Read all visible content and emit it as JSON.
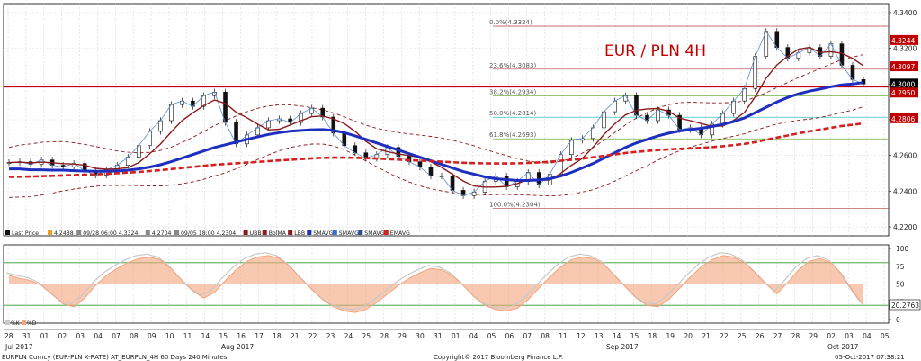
{
  "title": "EUR / PLN 4H",
  "footer": {
    "left": "EURPLN Curncy (EUR-PLN X-RATE) AT_EURPLN_4H 60 Days 240 Minutes",
    "center": "Copyright© 2017 Bloomberg Finance L.P.",
    "right": "05-Oct-2017 07:38:21"
  },
  "colors": {
    "price_candle": "#111111",
    "bolma": "#8b1a1a",
    "bollinger": "#8b1a1a",
    "smavg_fast": "#5b8fd6",
    "smavg_slow": "#1e2fbf",
    "emavg": "#d42020",
    "fib_line": "#b04040",
    "resistance": "#c00000",
    "osc_fill": "#f4a37c",
    "osc_shadow": "#c8c8c8",
    "osc_bands": "#2e9e2e"
  },
  "legend": [
    {
      "label": "Last Price",
      "color": "#111111"
    },
    {
      "label": "4.2488",
      "color": "#f0a020"
    },
    {
      "label": "09/28 06:00 4.3324",
      "color": "#888888"
    },
    {
      "label": "4.2704",
      "color": "#888888"
    },
    {
      "label": "09/05 18:00 4.2304",
      "color": "#888888"
    },
    {
      "label": "UBB",
      "color": "#8b1a1a"
    },
    {
      "label": "BolMA",
      "color": "#8b1a1a"
    },
    {
      "label": "LBB",
      "color": "#8b1a1a"
    },
    {
      "label": "SMAVG",
      "color": "#1e2fbf"
    },
    {
      "label": "SMAVG",
      "color": "#3a6fd0"
    },
    {
      "label": "SMAVG",
      "color": "#2a4fa0"
    },
    {
      "label": "EMAVG",
      "color": "#d42020"
    }
  ],
  "osc_legend": [
    {
      "label": "%K",
      "color": "#c8c8c8"
    },
    {
      "label": "%D",
      "color": "#f4a37c"
    }
  ],
  "fib_labels": [
    {
      "label": "0.0%(4.3324)",
      "value": 4.3324
    },
    {
      "label": "23.6%(4.3083)",
      "value": 4.3083
    },
    {
      "label": "38.2%(4.2934)",
      "value": 4.2934
    },
    {
      "label": "50.0%(4.2814)",
      "value": 4.2814
    },
    {
      "label": "61.8%(4.2693)",
      "value": 4.2693
    },
    {
      "label": "100.0%(4.2304)",
      "value": 4.2304
    }
  ],
  "right_tags": [
    {
      "text": "4.3244",
      "value": 4.3244,
      "bg": "#c00000",
      "fg": "#ffffff"
    },
    {
      "text": "4.3097",
      "value": 4.3097,
      "bg": "#c00000",
      "fg": "#ffffff"
    },
    {
      "text": "4.3000",
      "value": 4.3,
      "bg": "#000000",
      "fg": "#ffffff"
    },
    {
      "text": "4.2950",
      "value": 4.295,
      "bg": "#c00000",
      "fg": "#ffffff"
    },
    {
      "text": "4.2806",
      "value": 4.2806,
      "bg": "#c00000",
      "fg": "#ffffff"
    }
  ],
  "osc_tag": {
    "text": "20.2763",
    "value": 20.2763
  },
  "chart_data": {
    "type": "line",
    "title": "EUR / PLN 4H",
    "xlabel": "",
    "ylabel": "",
    "ylim": [
      4.215,
      4.345
    ],
    "y_ticks": [
      4.22,
      4.24,
      4.26,
      4.28,
      4.3,
      4.32,
      4.34
    ],
    "y_tick_labels": [
      "4.2200",
      "4.2400",
      "4.2600",
      "4.2800",
      "4.3000",
      "4.3200",
      "4.3400"
    ],
    "x_ticks": [
      "28",
      "31",
      "01",
      "02",
      "03",
      "04",
      "07",
      "08",
      "09",
      "10",
      "11",
      "14",
      "15",
      "16",
      "17",
      "18",
      "21",
      "22",
      "23",
      "24",
      "25",
      "28",
      "29",
      "30",
      "31",
      "01",
      "04",
      "05",
      "06",
      "07",
      "08",
      "11",
      "12",
      "13",
      "14",
      "15",
      "18",
      "19",
      "20",
      "21",
      "22",
      "25",
      "26",
      "27",
      "28",
      "29",
      "02",
      "03",
      "04",
      "05"
    ],
    "month_labels": [
      "Jul 2017",
      "Aug 2017",
      "Sep 2017",
      "Oct 2017"
    ],
    "horizontal_lines": [
      {
        "name": "resistance",
        "value": 4.2985
      }
    ],
    "series": [
      {
        "name": "Last Price",
        "values": [
          4.256,
          4.2565,
          4.255,
          4.2575,
          4.2545,
          4.2535,
          4.2555,
          4.2515,
          4.249,
          4.252,
          4.2545,
          4.259,
          4.2655,
          4.2735,
          4.2795,
          4.2885,
          4.2905,
          4.2875,
          4.2935,
          4.2955,
          4.2785,
          4.2665,
          4.2715,
          4.2755,
          4.2795,
          4.2805,
          4.2785,
          4.2835,
          4.2865,
          4.2815,
          4.2725,
          4.2655,
          4.2615,
          4.2585,
          4.2605,
          4.2645,
          4.2595,
          4.2565,
          4.2535,
          4.2485,
          4.2485,
          4.2405,
          4.2375,
          4.2395,
          4.2455,
          4.2485,
          4.2425,
          4.2455,
          4.2505,
          4.2435,
          4.2495,
          4.2605,
          4.2685,
          4.2695,
          4.2755,
          4.2845,
          4.2905,
          4.2935,
          4.2825,
          4.2795,
          4.2855,
          4.2825,
          4.2745,
          4.2755,
          4.2715,
          4.2775,
          4.2835,
          4.2905,
          4.2975,
          4.3155,
          4.3295,
          4.3205,
          4.3145,
          4.3175,
          4.3205,
          4.3155,
          4.3225,
          4.3105,
          4.3025,
          4.3
        ]
      },
      {
        "name": "SMAVG",
        "values": [
          4.2525,
          4.2525,
          4.252,
          4.252,
          4.2518,
          4.2518,
          4.2515,
          4.2513,
          4.2512,
          4.2512,
          4.2513,
          4.2518,
          4.2525,
          4.2535,
          4.2548,
          4.2565,
          4.2585,
          4.2605,
          4.2625,
          4.2645,
          4.266,
          4.2675,
          4.269,
          4.2705,
          4.2718,
          4.2728,
          4.2736,
          4.274,
          4.2744,
          4.2745,
          4.274,
          4.2728,
          4.271,
          4.269,
          4.267,
          4.265,
          4.263,
          4.261,
          4.259,
          4.257,
          4.255,
          4.253,
          4.251,
          4.2495,
          4.248,
          4.247,
          4.2465,
          4.246,
          4.246,
          4.2463,
          4.247,
          4.2485,
          4.2505,
          4.253,
          4.2555,
          4.2585,
          4.2615,
          4.2645,
          4.267,
          4.269,
          4.271,
          4.2725,
          4.2737,
          4.2745,
          4.2752,
          4.2762,
          4.2775,
          4.279,
          4.281,
          4.284,
          4.287,
          4.29,
          4.2925,
          4.2945,
          4.296,
          4.2972,
          4.2985,
          4.2995,
          4.3,
          4.3008
        ]
      },
      {
        "name": "EMAVG",
        "values": [
          4.248,
          4.2481,
          4.2482,
          4.2484,
          4.2486,
          4.2488,
          4.249,
          4.2492,
          4.2494,
          4.2497,
          4.25,
          4.2504,
          4.2508,
          4.2513,
          4.2518,
          4.2524,
          4.253,
          4.2536,
          4.2542,
          4.2548,
          4.2552,
          4.2556,
          4.256,
          4.2564,
          4.2568,
          4.2572,
          4.2576,
          4.258,
          4.2584,
          4.2587,
          4.2588,
          4.2588,
          4.2587,
          4.2585,
          4.2583,
          4.258,
          4.2577,
          4.2574,
          4.2571,
          4.2568,
          4.2565,
          4.2562,
          4.2559,
          4.2557,
          4.2556,
          4.2555,
          4.2555,
          4.2556,
          4.2558,
          4.2561,
          4.2565,
          4.257,
          4.2576,
          4.2583,
          4.259,
          4.2598,
          4.2606,
          4.2614,
          4.262,
          4.2625,
          4.263,
          4.2634,
          4.2637,
          4.264,
          4.2643,
          4.2647,
          4.2652,
          4.2658,
          4.2665,
          4.2675,
          4.2688,
          4.27,
          4.2712,
          4.2724,
          4.2735,
          4.2745,
          4.2755,
          4.2765,
          4.2772,
          4.278
        ]
      }
    ],
    "oscillator": {
      "ylim": [
        0,
        100
      ],
      "y_ticks": [
        0,
        25,
        50,
        75,
        100
      ],
      "bands": [
        20,
        50,
        80
      ],
      "values": [
        62,
        58,
        55,
        48,
        35,
        22,
        18,
        30,
        48,
        62,
        72,
        80,
        86,
        88,
        84,
        72,
        55,
        40,
        30,
        38,
        55,
        70,
        82,
        88,
        90,
        86,
        74,
        58,
        42,
        28,
        18,
        12,
        10,
        14,
        24,
        36,
        48,
        58,
        66,
        72,
        70,
        62,
        48,
        32,
        20,
        14,
        12,
        16,
        28,
        44,
        60,
        74,
        84,
        88,
        86,
        78,
        62,
        46,
        30,
        20,
        18,
        28,
        44,
        60,
        74,
        84,
        90,
        88,
        80,
        66,
        50,
        36,
        52,
        70,
        82,
        86,
        80,
        64,
        40,
        20
      ]
    }
  }
}
